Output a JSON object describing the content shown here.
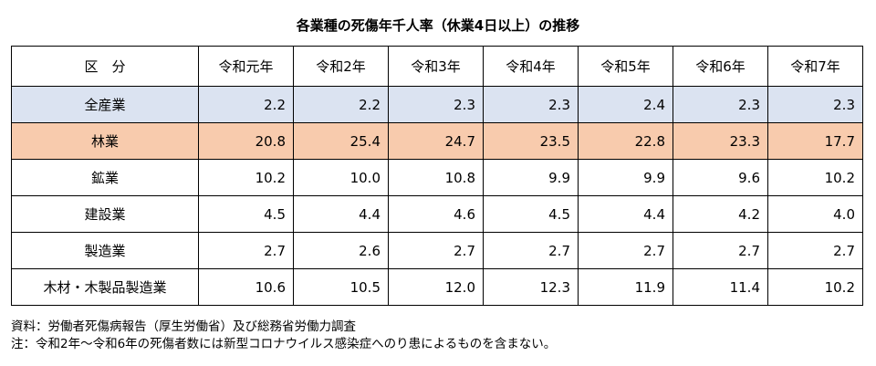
{
  "title": "各業種の死傷年千人率（休業4日以上）の推移",
  "table": {
    "label_header": "区　分",
    "year_headers": [
      "令和元年",
      "令和2年",
      "令和3年",
      "令和4年",
      "令和5年",
      "令和6年",
      "令和7年"
    ],
    "rows": [
      {
        "label": "全産業",
        "values": [
          "2.2",
          "2.2",
          "2.3",
          "2.3",
          "2.4",
          "2.3",
          "2.3"
        ],
        "highlight": "#dbe3f1"
      },
      {
        "label": "林業",
        "values": [
          "20.8",
          "25.4",
          "24.7",
          "23.5",
          "22.8",
          "23.3",
          "17.7"
        ],
        "highlight": "#f8cbad"
      },
      {
        "label": "鉱業",
        "values": [
          "10.2",
          "10.0",
          "10.8",
          "9.9",
          "9.9",
          "9.6",
          "10.2"
        ]
      },
      {
        "label": "建設業",
        "values": [
          "4.5",
          "4.4",
          "4.6",
          "4.5",
          "4.4",
          "4.2",
          "4.0"
        ]
      },
      {
        "label": "製造業",
        "values": [
          "2.7",
          "2.6",
          "2.7",
          "2.7",
          "2.7",
          "2.7",
          "2.7"
        ]
      },
      {
        "label": "木材・木製品製造業",
        "values": [
          "10.6",
          "10.5",
          "12.0",
          "12.3",
          "11.9",
          "11.4",
          "10.2"
        ]
      }
    ]
  },
  "notes": {
    "source": "資料：労働者死傷病報告（厚生労働省）及び総務省労働力調査",
    "note": "注：令和2年～令和6年の死傷者数には新型コロナウイルス感染症へのり患によるものを含まない。"
  }
}
